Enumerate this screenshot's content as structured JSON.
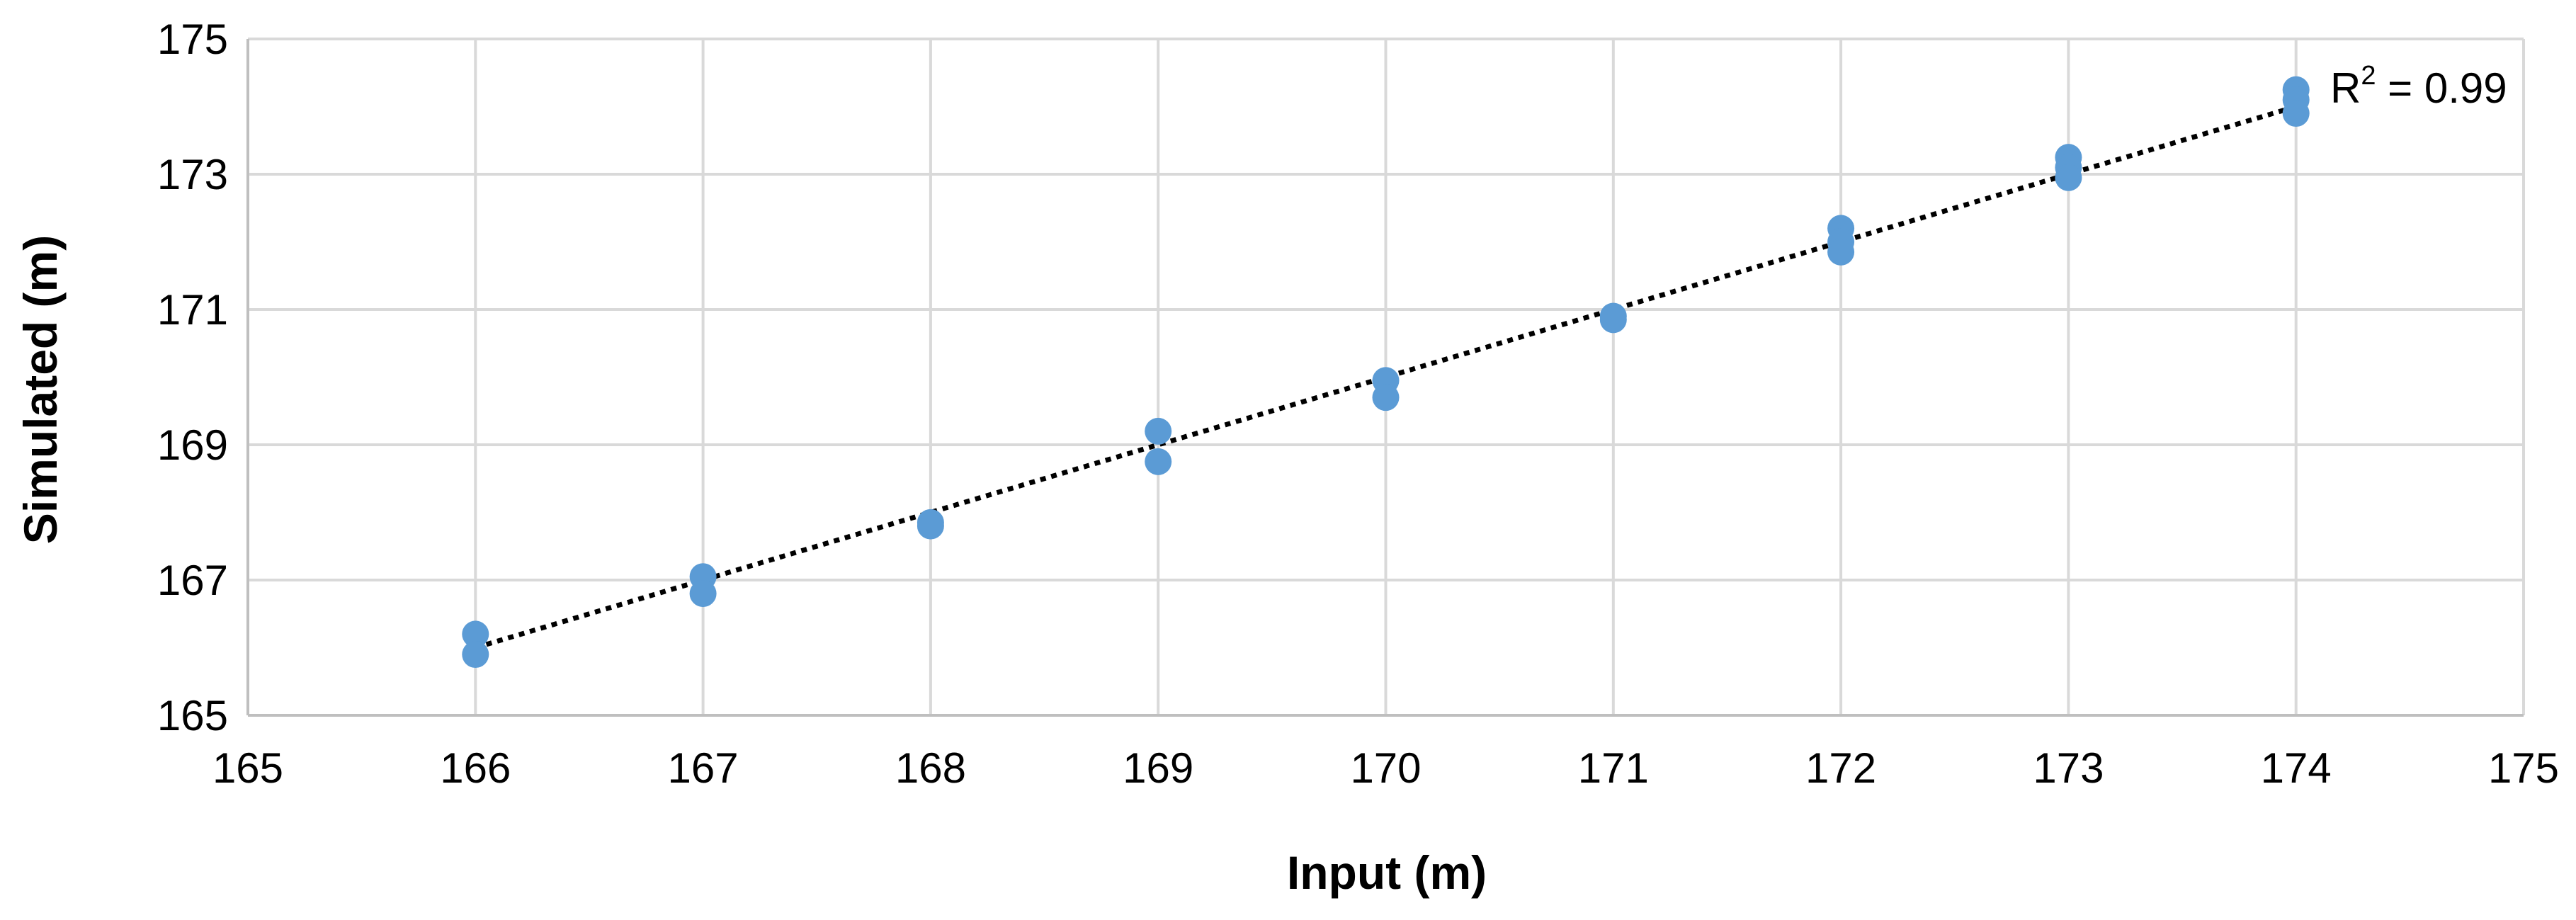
{
  "chart_data": {
    "type": "scatter",
    "title": "",
    "xlabel": "Input (m)",
    "ylabel": "Simulated (m)",
    "xlim": [
      165,
      175
    ],
    "ylim": [
      165,
      175
    ],
    "x_ticks": [
      "165",
      "166",
      "167",
      "168",
      "169",
      "170",
      "171",
      "172",
      "173",
      "174",
      "175"
    ],
    "y_ticks": [
      "165",
      "167",
      "169",
      "171",
      "173",
      "175"
    ],
    "grid": true,
    "legend": "none",
    "series": [
      {
        "color": "#5b9bd5",
        "points": [
          [
            166,
            166.2
          ],
          [
            166,
            165.9
          ],
          [
            167,
            167.05
          ],
          [
            167,
            166.8
          ],
          [
            168,
            167.85
          ],
          [
            168,
            167.8
          ],
          [
            169,
            169.2
          ],
          [
            169,
            168.75
          ],
          [
            170,
            169.95
          ],
          [
            170,
            169.7
          ],
          [
            171,
            170.9
          ],
          [
            171,
            170.85
          ],
          [
            172,
            172.2
          ],
          [
            172,
            172.0
          ],
          [
            172,
            171.85
          ],
          [
            173,
            173.25
          ],
          [
            173,
            173.1
          ],
          [
            173,
            172.95
          ],
          [
            174,
            174.25
          ],
          [
            174,
            174.1
          ],
          [
            174,
            173.9
          ]
        ]
      }
    ],
    "trendline": {
      "style": "dotted",
      "color": "#000000",
      "x_start": 166,
      "x_end": 174,
      "slope": 1.0,
      "intercept": 0.0
    },
    "annotation": {
      "r_label": "R",
      "r_sup": "2",
      "r_value": " = 0.99"
    }
  }
}
